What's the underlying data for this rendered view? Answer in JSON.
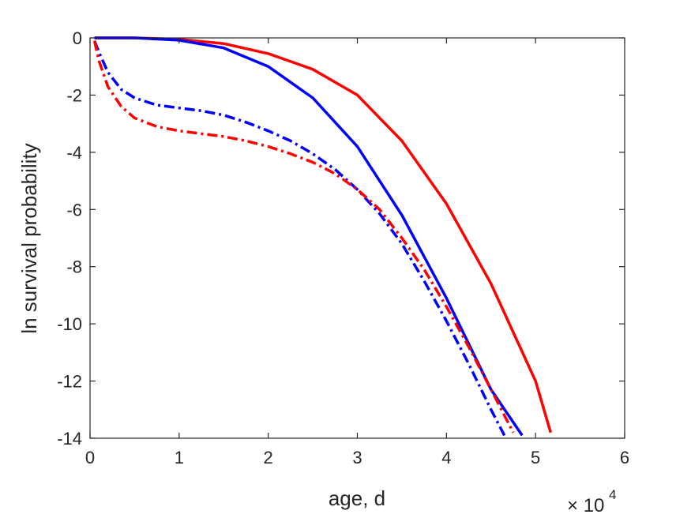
{
  "chart_data": {
    "type": "line",
    "xlabel": "age, d",
    "ylabel": "ln survival probability",
    "x_exponent_label": "10",
    "x_exponent_power": "4",
    "x_exponent_prefix": "×",
    "xlim": [
      0,
      6
    ],
    "ylim": [
      -14,
      0
    ],
    "x_scale_factor": 10000,
    "xticks": [
      0,
      1,
      2,
      3,
      4,
      5,
      6
    ],
    "yticks": [
      0,
      -2,
      -4,
      -6,
      -8,
      -10,
      -12,
      -14
    ],
    "xtick_labels": [
      "0",
      "1",
      "2",
      "3",
      "4",
      "5",
      "6"
    ],
    "ytick_labels": [
      "0",
      "-2",
      "-4",
      "-6",
      "-8",
      "-10",
      "-12",
      "-14"
    ],
    "grid": false,
    "series": [
      {
        "color": "#ff0000",
        "style": "solid",
        "x": [
          0.05,
          0.5,
          1.0,
          1.5,
          2.0,
          2.5,
          3.0,
          3.5,
          4.0,
          4.5,
          5.0,
          5.17
        ],
        "y": [
          0,
          0,
          -0.05,
          -0.2,
          -0.55,
          -1.1,
          -2.0,
          -3.6,
          -5.8,
          -8.6,
          -12.0,
          -13.8
        ]
      },
      {
        "color": "#0000ff",
        "style": "solid",
        "x": [
          0.05,
          0.5,
          1.0,
          1.5,
          2.0,
          2.5,
          3.0,
          3.5,
          4.0,
          4.5,
          4.85
        ],
        "y": [
          0,
          0,
          -0.08,
          -0.35,
          -1.0,
          -2.1,
          -3.8,
          -6.2,
          -9.1,
          -12.3,
          -13.9
        ]
      },
      {
        "color": "#0000ff",
        "style": "dashdot",
        "x": [
          0.05,
          0.1,
          0.2,
          0.35,
          0.5,
          0.75,
          1.0,
          1.25,
          1.5,
          1.75,
          2.0,
          2.25,
          2.5,
          2.75,
          3.0,
          3.25,
          3.5,
          3.75,
          4.0,
          4.25,
          4.5,
          4.65
        ],
        "y": [
          -0.1,
          -0.5,
          -1.2,
          -1.8,
          -2.1,
          -2.35,
          -2.45,
          -2.55,
          -2.7,
          -2.95,
          -3.25,
          -3.6,
          -4.05,
          -4.6,
          -5.3,
          -6.15,
          -7.2,
          -8.5,
          -9.9,
          -11.4,
          -13.0,
          -13.9
        ]
      },
      {
        "color": "#ff0000",
        "style": "dashdot",
        "x": [
          0.05,
          0.1,
          0.2,
          0.35,
          0.5,
          0.75,
          1.0,
          1.25,
          1.5,
          1.75,
          2.0,
          2.25,
          2.5,
          2.75,
          3.0,
          3.25,
          3.5,
          3.75,
          4.0,
          4.25,
          4.5,
          4.75
        ],
        "y": [
          -0.1,
          -0.8,
          -1.7,
          -2.4,
          -2.8,
          -3.1,
          -3.25,
          -3.35,
          -3.45,
          -3.6,
          -3.8,
          -4.05,
          -4.35,
          -4.75,
          -5.3,
          -6.0,
          -7.0,
          -8.1,
          -9.4,
          -10.8,
          -12.3,
          -13.8
        ]
      }
    ]
  }
}
